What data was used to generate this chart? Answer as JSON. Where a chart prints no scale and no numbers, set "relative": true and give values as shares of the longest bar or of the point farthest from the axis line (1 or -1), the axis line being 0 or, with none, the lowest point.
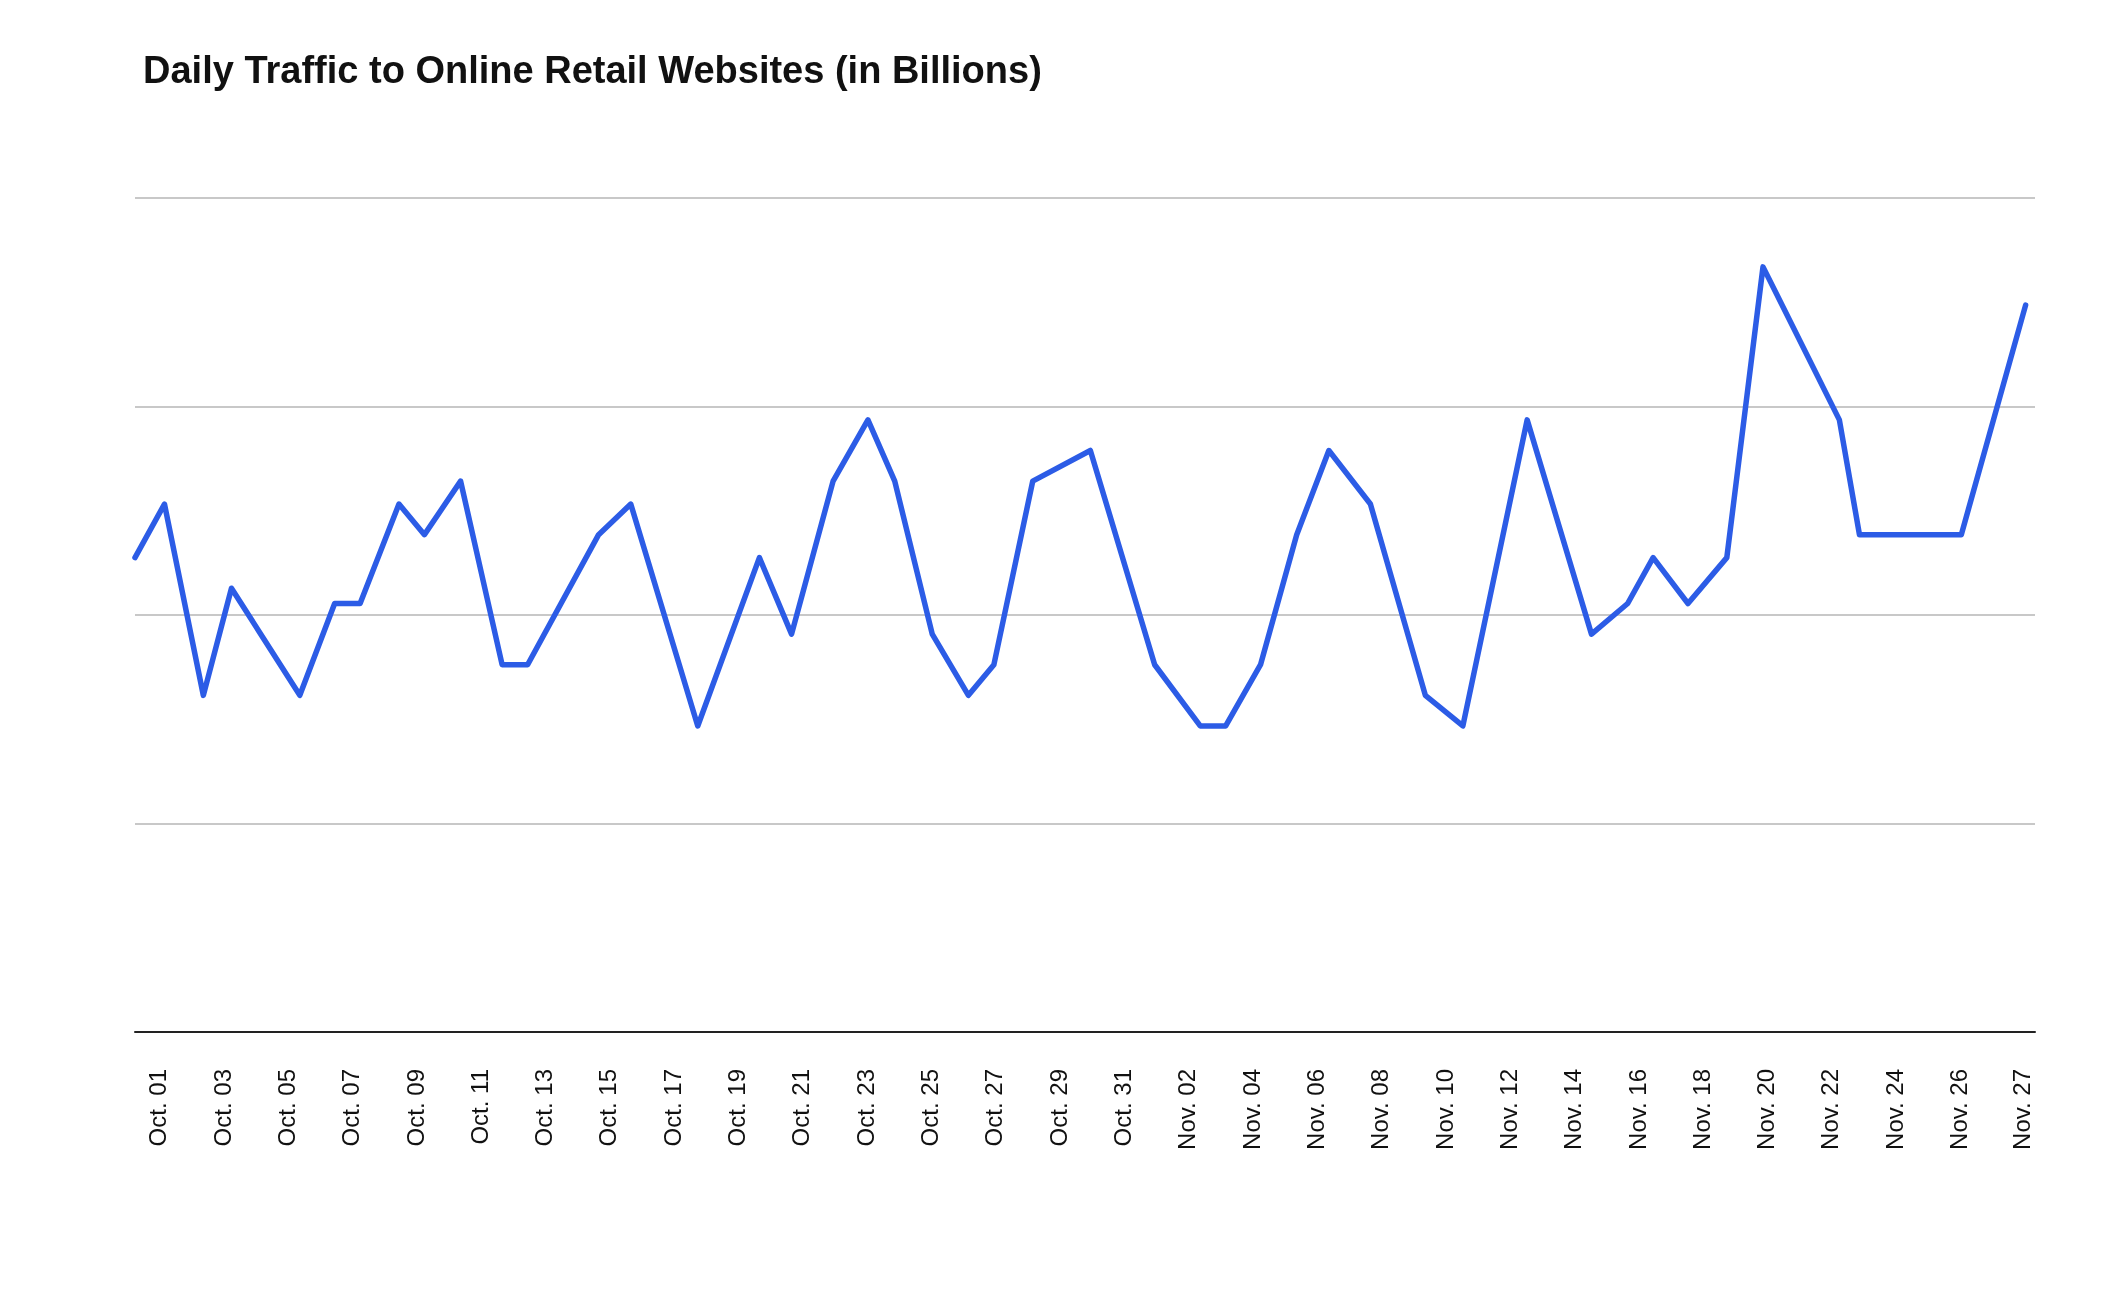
{
  "chart_data": {
    "type": "line",
    "title": "Daily Traffic to Online Retail Websites (in Billions)",
    "relative": true,
    "x": [
      "--09-30T07:00",
      "--10-01T05:00",
      "--10-02T10:00",
      "--10-03T07:00",
      "--10-05T10:00",
      "--10-06T12:00",
      "--10-07T07:00",
      "--10-08T12:00",
      "--10-09T07:00",
      "--10-10T10:00",
      "--10-11T17:00",
      "--10-12T12:00",
      "--10-14T17:00",
      "--10-15T17:00",
      "--10-17T19:00",
      "--10-19T17:00",
      "--10-20T17:00",
      "--10-22T00:00",
      "--10-23T02:00",
      "--10-23T22:00",
      "--10-25T02:00",
      "--10-26T05:00",
      "--10-27T00:00",
      "--10-28T05:00",
      "--10-30T00:00",
      "--11-01T00:00",
      "--11-02T10:00",
      "--11-03T05:00",
      "--11-04T07:00",
      "--11-05T10:00",
      "--11-06T10:00",
      "--11-07T17:00",
      "--11-09T10:00",
      "--11-10T14:00",
      "--11-12T14:00",
      "--11-14T14:00",
      "--11-15T17:00",
      "--11-16T12:00",
      "--11-17T14:00",
      "--11-18T19:00",
      "--11-19T22:00",
      "--11-22T07:00",
      "--11-22T22:00",
      "--11-26T02:00",
      "--11-28T02:00"
    ],
    "xlim": [
      "--09-30T07:00",
      "--11-28T09:00"
    ],
    "xticks": [
      {
        "value": "--10-01",
        "label": "Oct. 01"
      },
      {
        "value": "--10-03",
        "label": "Oct. 03"
      },
      {
        "value": "--10-05",
        "label": "Oct. 05"
      },
      {
        "value": "--10-07",
        "label": "Oct. 07"
      },
      {
        "value": "--10-09",
        "label": "Oct. 09"
      },
      {
        "value": "--10-11",
        "label": "Oct. 11"
      },
      {
        "value": "--10-13",
        "label": "Oct. 13"
      },
      {
        "value": "--10-15",
        "label": "Oct. 15"
      },
      {
        "value": "--10-17",
        "label": "Oct. 17"
      },
      {
        "value": "--10-19",
        "label": "Oct. 19"
      },
      {
        "value": "--10-21",
        "label": "Oct. 21"
      },
      {
        "value": "--10-23",
        "label": "Oct. 23"
      },
      {
        "value": "--10-25",
        "label": "Oct. 25"
      },
      {
        "value": "--10-27",
        "label": "Oct. 27"
      },
      {
        "value": "--10-29",
        "label": "Oct. 29"
      },
      {
        "value": "--10-31",
        "label": "Oct. 31"
      },
      {
        "value": "--11-02",
        "label": "Nov. 02"
      },
      {
        "value": "--11-04",
        "label": "Nov. 04"
      },
      {
        "value": "--11-06",
        "label": "Nov. 06"
      },
      {
        "value": "--11-08",
        "label": "Nov. 08"
      },
      {
        "value": "--11-10",
        "label": "Nov. 10"
      },
      {
        "value": "--11-12",
        "label": "Nov. 12"
      },
      {
        "value": "--11-14",
        "label": "Nov. 14"
      },
      {
        "value": "--11-16",
        "label": "Nov. 16"
      },
      {
        "value": "--11-18",
        "label": "Nov. 18"
      },
      {
        "value": "--11-20",
        "label": "Nov. 20"
      },
      {
        "value": "--11-22",
        "label": "Nov. 22"
      },
      {
        "value": "--11-24",
        "label": "Nov. 24"
      },
      {
        "value": "--11-26",
        "label": "Nov. 26"
      },
      {
        "value": "--11-27T23:00",
        "label": "Nov. 27"
      }
    ],
    "series": [
      {
        "color": "#2c5ce6",
        "values": [
          0.62,
          0.69,
          0.44,
          0.58,
          0.44,
          0.56,
          0.56,
          0.69,
          0.65,
          0.72,
          0.48,
          0.48,
          0.65,
          0.69,
          0.4,
          0.62,
          0.52,
          0.72,
          0.8,
          0.72,
          0.52,
          0.44,
          0.48,
          0.72,
          0.76,
          0.48,
          0.4,
          0.4,
          0.48,
          0.65,
          0.76,
          0.69,
          0.44,
          0.4,
          0.8,
          0.52,
          0.56,
          0.62,
          0.56,
          0.62,
          1,
          0.8,
          0.65,
          0.65,
          0.95
        ]
      }
    ],
    "grid": "y",
    "marker": "none",
    "line_style": "solid"
  }
}
